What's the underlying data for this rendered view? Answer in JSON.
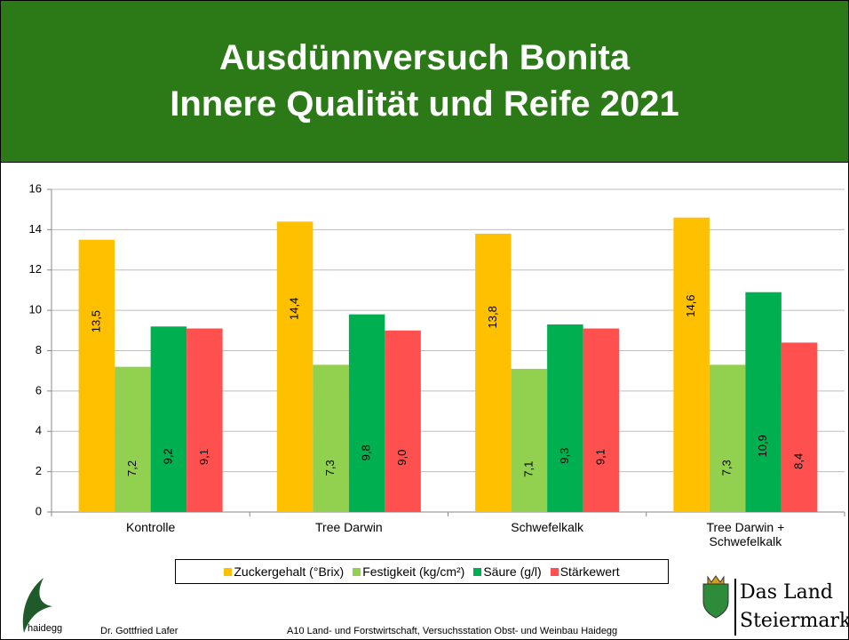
{
  "header": {
    "title_lines": [
      "Ausdünnversuch Bonita",
      "Innere Qualität und Reife 2021"
    ]
  },
  "chart_data": {
    "type": "bar",
    "categories": [
      "Kontrolle",
      "Tree Darwin",
      "Schwefelkalk",
      "Tree Darwin + Schwefelkalk"
    ],
    "series": [
      {
        "name": "Zuckergehalt (°Brix)",
        "color": "#FFC000",
        "values": [
          13.5,
          14.4,
          13.8,
          14.6
        ],
        "value_labels": [
          "13,5",
          "14,4",
          "13,8",
          "14,6"
        ]
      },
      {
        "name": "Festigkeit (kg/cm²)",
        "color": "#92D050",
        "values": [
          7.2,
          7.3,
          7.1,
          7.3
        ],
        "value_labels": [
          "7,2",
          "7,3",
          "7,1",
          "7,3"
        ]
      },
      {
        "name": "Säure (g/l)",
        "color": "#00B050",
        "values": [
          9.2,
          9.8,
          9.3,
          10.9
        ],
        "value_labels": [
          "9,2",
          "9,8",
          "9,3",
          "10,9"
        ]
      },
      {
        "name": "Stärkewert",
        "color": "#FF5050",
        "values": [
          9.1,
          9.0,
          9.1,
          8.4
        ],
        "value_labels": [
          "9,1",
          "9,0",
          "9,1",
          "8,4"
        ]
      }
    ],
    "ylim": [
      0,
      16
    ],
    "yticks": [
      0,
      2,
      4,
      6,
      8,
      10,
      12,
      14,
      16
    ],
    "grid": true,
    "legend": "bottom"
  },
  "footer": {
    "logo_text": "haidegg",
    "author": "Dr. Gottfried Lafer",
    "institution": "A10 Land- und Forstwirtschaft, Versuchsstation Obst- und Weinbau Haidegg",
    "brand_lines": [
      "Das Land",
      "Steiermark"
    ]
  }
}
